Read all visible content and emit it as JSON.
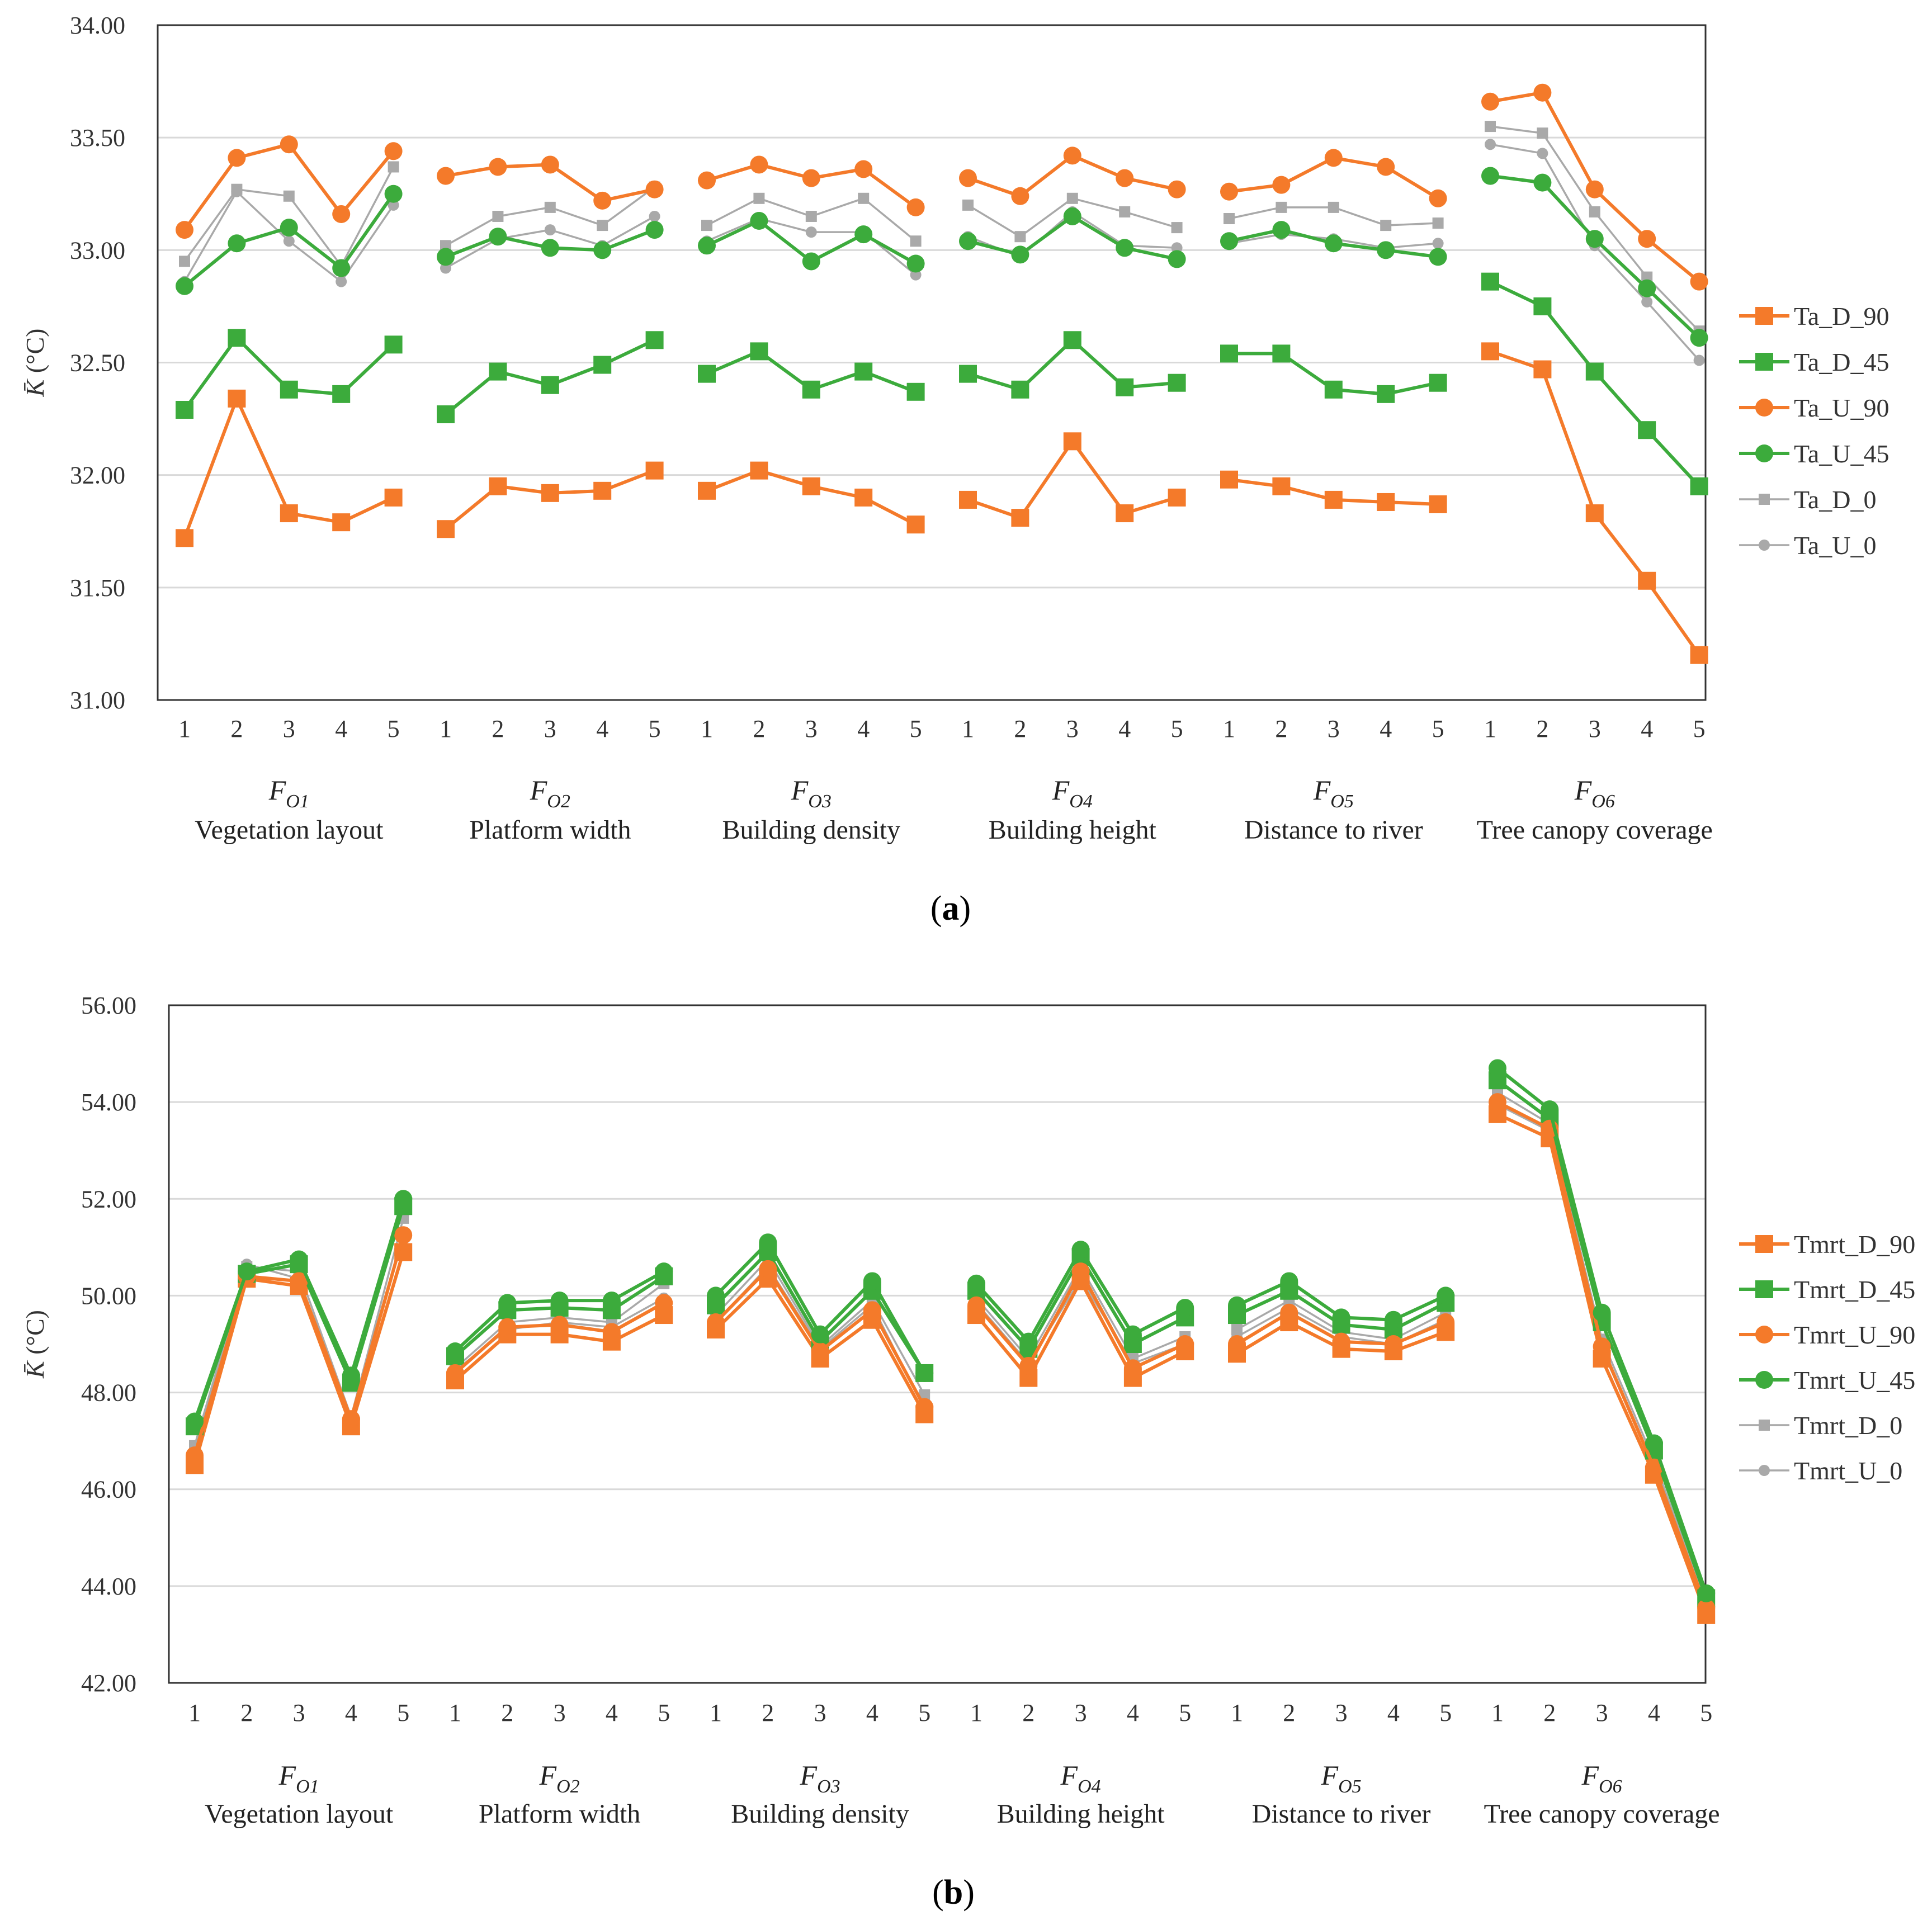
{
  "chart_data": [
    {
      "id": "a",
      "type": "line",
      "panel_label_open": "(",
      "panel_label_letter": "a",
      "panel_label_close": ")",
      "ylabel_symbol": "K̄",
      "ylabel_unit": "(°C)",
      "ylim": [
        31.0,
        34.0
      ],
      "ytick_values": [
        31.0,
        31.5,
        32.0,
        32.5,
        33.0,
        33.5,
        34.0
      ],
      "ytick_labels": [
        "31.00",
        "31.50",
        "32.00",
        "32.50",
        "33.00",
        "33.50",
        "34.00"
      ],
      "level_labels": [
        "1",
        "2",
        "3",
        "4",
        "5"
      ],
      "groups": [
        {
          "symbol": "F",
          "sub": "O1",
          "name": "Vegetation layout"
        },
        {
          "symbol": "F",
          "sub": "O2",
          "name": "Platform width"
        },
        {
          "symbol": "F",
          "sub": "O3",
          "name": "Building density"
        },
        {
          "symbol": "F",
          "sub": "O4",
          "name": "Building height"
        },
        {
          "symbol": "F",
          "sub": "O5",
          "name": "Distance to river"
        },
        {
          "symbol": "F",
          "sub": "O6",
          "name": "Tree canopy coverage"
        }
      ],
      "legend_position": "right",
      "grid": true,
      "series": [
        {
          "name": "Ta_D_90",
          "color": "#f47a2a",
          "marker": "square",
          "values": [
            [
              31.72,
              32.34,
              31.83,
              31.79,
              31.9
            ],
            [
              31.76,
              31.95,
              31.92,
              31.93,
              32.02
            ],
            [
              31.93,
              32.02,
              31.95,
              31.9,
              31.78
            ],
            [
              31.89,
              31.81,
              32.15,
              31.83,
              31.9
            ],
            [
              31.98,
              31.95,
              31.89,
              31.88,
              31.87
            ],
            [
              32.55,
              32.47,
              31.83,
              31.53,
              31.2
            ]
          ]
        },
        {
          "name": "Ta_D_45",
          "color": "#3cab3c",
          "marker": "square",
          "values": [
            [
              32.29,
              32.61,
              32.38,
              32.36,
              32.58
            ],
            [
              32.27,
              32.46,
              32.4,
              32.49,
              32.6
            ],
            [
              32.45,
              32.55,
              32.38,
              32.46,
              32.37
            ],
            [
              32.45,
              32.38,
              32.6,
              32.39,
              32.41
            ],
            [
              32.54,
              32.54,
              32.38,
              32.36,
              32.41
            ],
            [
              32.86,
              32.75,
              32.46,
              32.2,
              31.95
            ]
          ]
        },
        {
          "name": "Ta_U_90",
          "color": "#f47a2a",
          "marker": "circle",
          "values": [
            [
              33.09,
              33.41,
              33.47,
              33.16,
              33.44
            ],
            [
              33.33,
              33.37,
              33.38,
              33.22,
              33.27
            ],
            [
              33.31,
              33.38,
              33.32,
              33.36,
              33.19
            ],
            [
              33.32,
              33.24,
              33.42,
              33.32,
              33.27
            ],
            [
              33.26,
              33.29,
              33.41,
              33.37,
              33.23
            ],
            [
              33.66,
              33.7,
              33.27,
              33.05,
              32.86
            ]
          ]
        },
        {
          "name": "Ta_U_45",
          "color": "#3cab3c",
          "marker": "circle",
          "values": [
            [
              32.84,
              33.03,
              33.1,
              32.92,
              33.25
            ],
            [
              32.97,
              33.06,
              33.01,
              33.0,
              33.09
            ],
            [
              33.02,
              33.13,
              32.95,
              33.07,
              32.94
            ],
            [
              33.04,
              32.98,
              33.15,
              33.01,
              32.96
            ],
            [
              33.04,
              33.09,
              33.03,
              33.0,
              32.97
            ],
            [
              33.33,
              33.3,
              33.05,
              32.83,
              32.61
            ]
          ]
        },
        {
          "name": "Ta_D_0",
          "color": "#a9a9a9",
          "marker": "square-small",
          "values": [
            [
              32.95,
              33.27,
              33.24,
              32.93,
              33.37
            ],
            [
              33.02,
              33.15,
              33.19,
              33.11,
              33.28
            ],
            [
              33.11,
              33.23,
              33.15,
              33.23,
              33.04
            ],
            [
              33.2,
              33.06,
              33.23,
              33.17,
              33.1
            ],
            [
              33.14,
              33.19,
              33.19,
              33.11,
              33.12
            ],
            [
              33.55,
              33.52,
              33.17,
              32.88,
              32.64
            ]
          ]
        },
        {
          "name": "Ta_U_0",
          "color": "#a9a9a9",
          "marker": "circle-small",
          "values": [
            [
              32.86,
              33.26,
              33.04,
              32.86,
              33.2
            ],
            [
              32.92,
              33.05,
              33.09,
              33.02,
              33.15
            ],
            [
              33.04,
              33.14,
              33.08,
              33.08,
              32.89
            ],
            [
              33.06,
              32.97,
              33.17,
              33.02,
              33.01
            ],
            [
              33.03,
              33.07,
              33.05,
              33.01,
              33.03
            ],
            [
              33.47,
              33.43,
              33.02,
              32.77,
              32.51
            ]
          ]
        }
      ]
    },
    {
      "id": "b",
      "type": "line",
      "panel_label_open": "(",
      "panel_label_letter": "b",
      "panel_label_close": ")",
      "ylabel_symbol": "K̄",
      "ylabel_unit": "(°C)",
      "ylim": [
        42.0,
        56.0
      ],
      "ytick_values": [
        42,
        44,
        46,
        48,
        50,
        52,
        54,
        56
      ],
      "ytick_labels": [
        "42.00",
        "44.00",
        "46.00",
        "48.00",
        "50.00",
        "52.00",
        "54.00",
        "56.00"
      ],
      "level_labels": [
        "1",
        "2",
        "3",
        "4",
        "5"
      ],
      "groups": [
        {
          "symbol": "F",
          "sub": "O1",
          "name": "Vegetation layout"
        },
        {
          "symbol": "F",
          "sub": "O2",
          "name": "Platform width"
        },
        {
          "symbol": "F",
          "sub": "O3",
          "name": "Building density"
        },
        {
          "symbol": "F",
          "sub": "O4",
          "name": "Building height"
        },
        {
          "symbol": "F",
          "sub": "O5",
          "name": "Distance to river"
        },
        {
          "symbol": "F",
          "sub": "O6",
          "name": "Tree canopy coverage"
        }
      ],
      "legend_position": "right",
      "grid": true,
      "series": [
        {
          "name": "Tmrt_D_90",
          "color": "#f47a2a",
          "marker": "square",
          "values": [
            [
              46.5,
              50.35,
              50.2,
              47.3,
              50.9
            ],
            [
              48.25,
              49.2,
              49.2,
              49.05,
              49.6
            ],
            [
              49.3,
              50.35,
              48.7,
              49.5,
              47.55
            ],
            [
              49.6,
              48.3,
              50.3,
              48.3,
              48.85
            ],
            [
              48.8,
              49.45,
              48.9,
              48.85,
              49.25
            ],
            [
              53.75,
              53.25,
              48.7,
              46.3,
              43.4
            ]
          ]
        },
        {
          "name": "Tmrt_D_45",
          "color": "#3cab3c",
          "marker": "square",
          "values": [
            [
              47.3,
              50.45,
              50.65,
              48.2,
              51.85
            ],
            [
              48.75,
              49.7,
              49.75,
              49.7,
              50.4
            ],
            [
              49.8,
              50.9,
              49.05,
              50.1,
              48.4
            ],
            [
              50.1,
              48.9,
              50.8,
              49.0,
              49.55
            ],
            [
              49.6,
              50.1,
              49.4,
              49.3,
              49.85
            ],
            [
              54.45,
              53.65,
              49.45,
              46.8,
              43.75
            ]
          ]
        },
        {
          "name": "Tmrt_U_90",
          "color": "#f47a2a",
          "marker": "circle",
          "values": [
            [
              46.7,
              50.4,
              50.3,
              47.45,
              51.25
            ],
            [
              48.4,
              49.35,
              49.4,
              49.25,
              49.85
            ],
            [
              49.45,
              50.55,
              48.85,
              49.7,
              47.7
            ],
            [
              49.8,
              48.55,
              50.5,
              48.5,
              49.0
            ],
            [
              49.0,
              49.65,
              49.05,
              49.0,
              49.45
            ],
            [
              54.0,
              53.45,
              48.95,
              46.45,
              43.55
            ]
          ]
        },
        {
          "name": "Tmrt_U_45",
          "color": "#3cab3c",
          "marker": "circle",
          "values": [
            [
              47.4,
              50.5,
              50.75,
              48.35,
              52.0
            ],
            [
              48.85,
              49.85,
              49.9,
              49.9,
              50.5
            ],
            [
              50.0,
              51.1,
              49.2,
              50.3,
              48.4
            ],
            [
              50.25,
              49.05,
              50.95,
              49.2,
              49.75
            ],
            [
              49.8,
              50.3,
              49.55,
              49.5,
              50.0
            ],
            [
              54.7,
              53.85,
              49.65,
              46.95,
              43.85
            ]
          ]
        },
        {
          "name": "Tmrt_D_0",
          "color": "#a9a9a9",
          "marker": "square-small",
          "values": [
            [
              46.9,
              50.6,
              50.5,
              47.5,
              51.6
            ],
            [
              48.5,
              49.45,
              49.55,
              49.45,
              50.25
            ],
            [
              49.6,
              50.75,
              48.95,
              49.9,
              47.95
            ],
            [
              49.95,
              48.7,
              50.6,
              48.7,
              49.15
            ],
            [
              49.3,
              49.9,
              49.25,
              49.1,
              49.65
            ],
            [
              54.2,
              53.55,
              49.1,
              46.6,
              43.65
            ]
          ]
        },
        {
          "name": "Tmrt_U_0",
          "color": "#a9a9a9",
          "marker": "circle-small",
          "values": [
            [
              46.75,
              50.65,
              50.35,
              47.4,
              51.3
            ],
            [
              48.45,
              49.3,
              49.45,
              49.35,
              49.95
            ],
            [
              49.45,
              50.6,
              48.9,
              49.8,
              47.65
            ],
            [
              49.85,
              48.6,
              50.35,
              48.6,
              49.0
            ],
            [
              49.15,
              49.75,
              49.15,
              49.0,
              49.5
            ],
            [
              53.95,
              53.4,
              48.9,
              46.45,
              43.6
            ]
          ]
        }
      ]
    }
  ]
}
